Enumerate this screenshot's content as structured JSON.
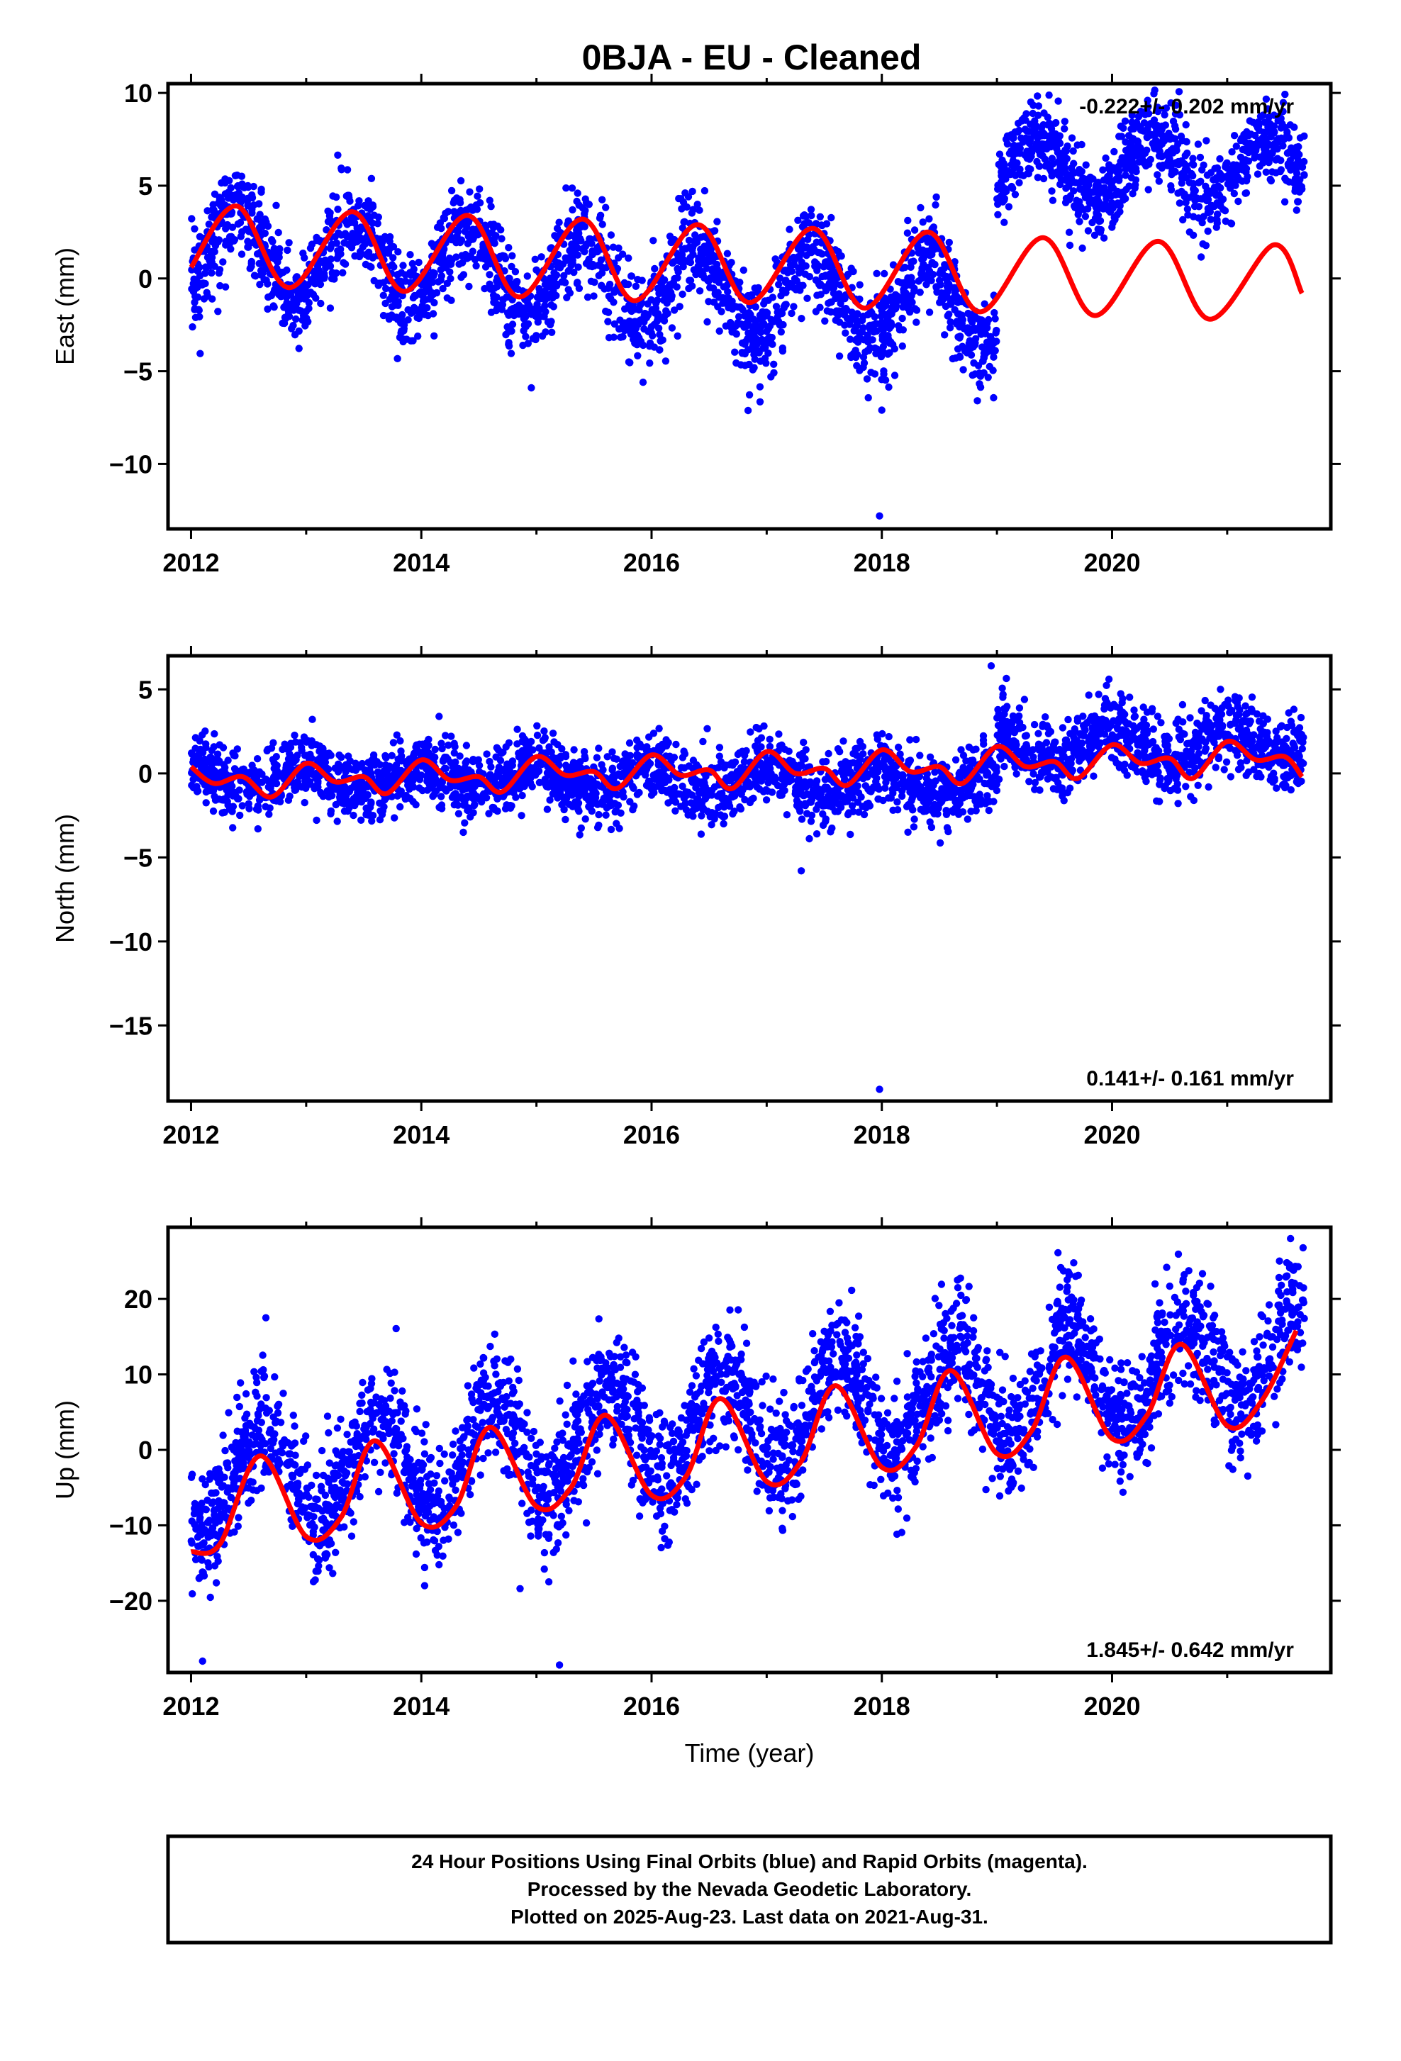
{
  "title": "0BJA  - EU - Cleaned",
  "footer": {
    "lines": [
      "24 Hour Positions Using Final Orbits (blue) and Rapid Orbits (magenta).",
      "Processed by the Nevada Geodetic Laboratory.",
      "Plotted on 2025-Aug-23. Last data on 2021-Aug-31."
    ]
  },
  "colors": {
    "data": "#0000ff",
    "model": "#ff0000",
    "axis": "#000000"
  },
  "chart_data": [
    {
      "type": "scatter",
      "ylabel": "East (mm)",
      "xlabel": "",
      "xlim": [
        2011.8,
        2021.9
      ],
      "ylim": [
        -13.5,
        10.5
      ],
      "xticks": [
        2012,
        2014,
        2016,
        2018,
        2020
      ],
      "yticks": [
        10,
        5,
        0,
        -5,
        -10
      ],
      "ytick_labels": [
        "10",
        "5",
        "0",
        "−5",
        "−10"
      ],
      "rate_label": "-0.222+/- 0.202 mm/yr",
      "rate_position": "top-right",
      "series": [
        {
          "kind": "points",
          "color": "#0000ff",
          "segments": [
            {
              "x0": 2012.0,
              "x1": 2019.0,
              "y0": 1.5,
              "trend": -0.45,
              "amp": 2.3,
              "phase": 2012.4,
              "noise": 1.3
            },
            {
              "x0": 2019.0,
              "x1": 2021.67,
              "y0": 5.8,
              "trend": 0.1,
              "amp": 1.7,
              "phase": 2020.35,
              "noise": 1.1
            }
          ],
          "outliers": [
            {
              "x": 2017.98,
              "y": -12.8
            },
            {
              "x": 2018.0,
              "y": -7.1
            }
          ]
        },
        {
          "kind": "model",
          "color": "#ff0000",
          "x": [
            2012.0,
            2012.4,
            2012.85,
            2013.4,
            2013.85,
            2014.4,
            2014.85,
            2015.4,
            2015.85,
            2016.4,
            2016.85,
            2017.4,
            2017.85,
            2018.4,
            2018.85,
            2019.4,
            2019.85,
            2020.4,
            2020.85,
            2021.4,
            2021.65
          ],
          "y": [
            0.6,
            3.9,
            -0.5,
            3.6,
            -0.7,
            3.4,
            -1.0,
            3.2,
            -1.2,
            2.9,
            -1.3,
            2.7,
            -1.6,
            2.5,
            -1.8,
            2.2,
            -2.0,
            2.0,
            -2.2,
            1.8,
            -0.8
          ]
        }
      ]
    },
    {
      "type": "scatter",
      "ylabel": "North (mm)",
      "xlabel": "",
      "xlim": [
        2011.8,
        2021.9
      ],
      "ylim": [
        -19.5,
        7
      ],
      "xticks": [
        2012,
        2014,
        2016,
        2018,
        2020
      ],
      "yticks": [
        5,
        0,
        -5,
        -10,
        -15
      ],
      "ytick_labels": [
        "5",
        "0",
        "−5",
        "−10",
        "−15"
      ],
      "rate_label": "0.141+/- 0.161 mm/yr",
      "rate_position": "bottom-right",
      "series": [
        {
          "kind": "points",
          "color": "#0000ff",
          "segments": [
            {
              "x0": 2012.0,
              "x1": 2019.0,
              "y0": -0.2,
              "trend": -0.05,
              "amp": 0.7,
              "phase": 2013.0,
              "noise": 1.0
            },
            {
              "x0": 2019.0,
              "x1": 2021.67,
              "y0": 1.6,
              "trend": 0.05,
              "amp": 0.9,
              "phase": 2020.0,
              "noise": 1.1
            }
          ],
          "outliers": [
            {
              "x": 2017.98,
              "y": -18.8
            },
            {
              "x": 2018.95,
              "y": 6.4
            },
            {
              "x": 2017.3,
              "y": -5.8
            }
          ]
        },
        {
          "kind": "model",
          "color": "#ff0000",
          "x": [
            2012.0,
            2012.2,
            2012.45,
            2012.7,
            2013.0,
            2013.25,
            2013.5,
            2013.7,
            2014.0,
            2014.25,
            2014.5,
            2014.7,
            2015.0,
            2015.25,
            2015.5,
            2015.7,
            2016.0,
            2016.25,
            2016.5,
            2016.7,
            2017.0,
            2017.25,
            2017.5,
            2017.7,
            2018.0,
            2018.25,
            2018.5,
            2018.7,
            2019.0,
            2019.25,
            2019.5,
            2019.7,
            2020.0,
            2020.25,
            2020.5,
            2020.7,
            2021.0,
            2021.25,
            2021.5,
            2021.65
          ],
          "y": [
            0.4,
            -0.6,
            -0.2,
            -1.4,
            0.6,
            -0.5,
            -0.2,
            -1.2,
            0.8,
            -0.4,
            -0.2,
            -1.1,
            1.0,
            -0.1,
            0.1,
            -0.9,
            1.1,
            -0.1,
            0.2,
            -0.9,
            1.3,
            0.0,
            0.3,
            -0.7,
            1.4,
            0.1,
            0.4,
            -0.6,
            1.6,
            0.4,
            0.7,
            -0.3,
            1.7,
            0.6,
            0.9,
            -0.3,
            1.9,
            0.8,
            1.0,
            -0.2
          ]
        }
      ]
    },
    {
      "type": "scatter",
      "ylabel": "Up (mm)",
      "xlabel": "Time (year)",
      "xlim": [
        2011.8,
        2021.9
      ],
      "ylim": [
        -29.5,
        29.5
      ],
      "xticks": [
        2012,
        2014,
        2016,
        2018,
        2020
      ],
      "yticks": [
        20,
        10,
        0,
        -10,
        -20
      ],
      "ytick_labels": [
        "20",
        "10",
        "0",
        "−10",
        "−20"
      ],
      "rate_label": "1.845+/- 0.642 mm/yr",
      "rate_position": "bottom-right",
      "series": [
        {
          "kind": "points",
          "color": "#0000ff",
          "segments": [
            {
              "x0": 2012.0,
              "x1": 2021.67,
              "y0": -5.0,
              "trend": 1.85,
              "amp": 6.5,
              "phase": 2012.62,
              "noise": 4.0
            }
          ],
          "outliers": [
            {
              "x": 2015.2,
              "y": -28.5
            },
            {
              "x": 2012.1,
              "y": -28.0
            },
            {
              "x": 2021.55,
              "y": 28.0
            },
            {
              "x": 2012.65,
              "y": 17.5
            }
          ]
        },
        {
          "kind": "model",
          "color": "#ff0000",
          "x": [
            2012.0,
            2012.25,
            2012.6,
            2013.0,
            2013.3,
            2013.6,
            2014.0,
            2014.3,
            2014.6,
            2015.0,
            2015.3,
            2015.6,
            2016.0,
            2016.3,
            2016.6,
            2017.0,
            2017.3,
            2017.6,
            2018.0,
            2018.3,
            2018.6,
            2019.0,
            2019.3,
            2019.6,
            2020.0,
            2020.3,
            2020.6,
            2021.0,
            2021.3,
            2021.6
          ],
          "y": [
            -13.5,
            -12.5,
            -0.8,
            -11.5,
            -9.0,
            1.2,
            -9.7,
            -7.5,
            3.0,
            -7.5,
            -5.0,
            4.6,
            -6.0,
            -3.5,
            6.8,
            -4.2,
            -1.5,
            8.5,
            -2.3,
            0.5,
            10.5,
            -0.5,
            2.5,
            12.3,
            1.5,
            4.5,
            14.0,
            3.2,
            6.5,
            15.8
          ]
        }
      ]
    }
  ]
}
